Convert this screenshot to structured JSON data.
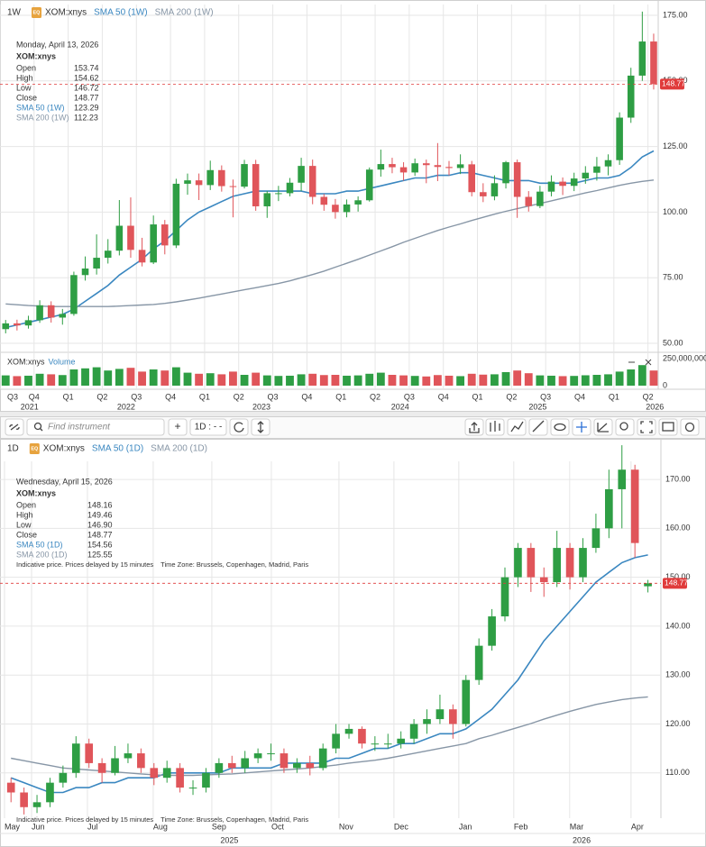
{
  "toolbar": {
    "search_placeholder": "Find instrument",
    "add_button": "+",
    "interval_button": "1D : - -"
  },
  "chart_data": [
    {
      "type": "candlestick",
      "interval": "1W",
      "badge": "EQ",
      "symbol": "XOM:xnys",
      "info": {
        "date": "Monday, April 13, 2026",
        "symbol": "XOM:xnys",
        "rows": [
          {
            "label": "Open",
            "value": "153.74"
          },
          {
            "label": "High",
            "value": "154.62"
          },
          {
            "label": "Low",
            "value": "146.72"
          },
          {
            "label": "Close",
            "value": "148.77"
          },
          {
            "label": "SMA 50 (1W)",
            "value": "123.29"
          },
          {
            "label": "SMA 200 (1W)",
            "value": "112.23"
          }
        ]
      },
      "up_color": "#2e9e44",
      "down_color": "#e0555a",
      "grid": true,
      "candles": {
        "open": [
          55.4,
          57.6,
          56.8,
          58.8,
          64.5,
          59.8,
          61.2,
          76,
          78.5,
          82.6,
          85.3,
          94.8,
          85.6,
          80.8,
          95.3,
          87.3,
          110.8,
          112.1,
          110.3,
          116,
          109.9,
          109.7,
          118.3,
          102.2,
          107.2,
          107.2,
          111.2,
          117.6,
          105.8,
          102.8,
          100,
          102.9,
          104.5,
          116.2,
          118.3,
          117.1,
          115.1,
          118.6,
          117.9,
          117.2,
          116.8,
          118.2,
          107.6,
          106,
          111,
          119,
          105.8,
          102.3,
          107.8,
          111.6,
          110,
          112.8,
          115,
          117.4,
          119.8,
          136,
          152,
          165
        ],
        "high": [
          58.9,
          59,
          60.5,
          66.4,
          66,
          63.1,
          77.3,
          83.1,
          91.5,
          89.7,
          104.6,
          105.6,
          90.2,
          98.7,
          97,
          112.7,
          114.7,
          114.7,
          119.6,
          117.8,
          112.4,
          119.9,
          119.9,
          108,
          110,
          113,
          120.7,
          120,
          106.9,
          105,
          104.8,
          106,
          117,
          123.8,
          120.7,
          119,
          120.4,
          120,
          126.3,
          119.5,
          122,
          119.5,
          111,
          114,
          119.5,
          120,
          108,
          110,
          114,
          113.2,
          115,
          117.5,
          121,
          122,
          138,
          155,
          176.4,
          168
        ],
        "low": [
          53.8,
          54.9,
          55.6,
          57.8,
          57.9,
          57.1,
          60.5,
          73.9,
          76.2,
          80.4,
          83.5,
          82.6,
          79.3,
          80.2,
          83.9,
          86.3,
          106.6,
          104.6,
          108.4,
          107.8,
          98,
          109,
          100.5,
          97.8,
          104.2,
          106,
          108,
          103,
          100.5,
          97.5,
          98,
          100.2,
          104,
          113.5,
          114.8,
          112,
          113.8,
          111,
          111.8,
          114,
          114.5,
          106,
          103.8,
          104.5,
          109,
          97.8,
          100.2,
          101.5,
          106,
          106.5,
          108,
          110.8,
          112,
          114,
          118,
          134,
          150,
          146.72
        ],
        "close": [
          57.6,
          56.8,
          58.8,
          64.5,
          59.8,
          61.2,
          76,
          78.5,
          82.6,
          85.3,
          94.8,
          85.6,
          80.8,
          95.3,
          87.3,
          110.8,
          112.1,
          110.3,
          116,
          109.9,
          109.7,
          118.3,
          102.2,
          107.2,
          107.2,
          111.2,
          117.6,
          105.8,
          102.8,
          100,
          102.9,
          104.5,
          116.2,
          118.3,
          117.1,
          115.1,
          118.6,
          117.9,
          117.2,
          116.8,
          118.2,
          107.6,
          106,
          111,
          119,
          105.8,
          102.3,
          107.8,
          111.6,
          110,
          112.8,
          115,
          117.4,
          119.8,
          136,
          152,
          165,
          148.77
        ]
      },
      "series": [
        {
          "name": "SMA 50 (1W)",
          "color": "#3a87c0",
          "values": [
            56,
            57,
            58,
            59,
            60,
            61,
            63,
            66,
            69,
            72,
            76,
            79,
            82,
            86,
            89,
            93,
            97,
            100,
            102,
            104,
            106,
            107,
            108,
            108,
            108,
            108,
            108,
            107,
            107,
            107,
            108,
            108,
            109,
            110,
            111,
            112,
            113,
            113,
            114,
            114,
            115,
            115,
            114,
            113,
            112,
            112,
            112,
            111,
            111,
            111,
            111,
            112,
            113,
            113,
            114,
            117,
            121,
            123.29
          ]
        },
        {
          "name": "SMA 200 (1W)",
          "color": "#8796a6",
          "values": [
            65,
            64.7,
            64.4,
            64.2,
            64,
            64,
            64,
            64,
            64,
            64,
            64.2,
            64.4,
            64.6,
            64.8,
            65.2,
            65.8,
            66.5,
            67.2,
            68,
            68.8,
            69.6,
            70.4,
            71.2,
            72,
            72.8,
            73.8,
            75,
            76.2,
            77.5,
            79,
            80.5,
            82,
            83.6,
            85.2,
            86.8,
            88.5,
            90,
            91.5,
            93,
            94.3,
            95.5,
            96.8,
            98,
            99.2,
            100.3,
            101.3,
            102.3,
            103.3,
            104.3,
            105.3,
            106.3,
            107.3,
            108.2,
            109.2,
            110.2,
            111,
            111.7,
            112.23
          ]
        }
      ],
      "last_price": 148.77,
      "last_price_color": "#e03b3b",
      "ylim": [
        47.6,
        179.1
      ],
      "yticks": [
        {
          "value": 175,
          "label": "175.00"
        },
        {
          "value": 150,
          "label": "150.00"
        },
        {
          "value": 125,
          "label": "125.00"
        },
        {
          "value": 100,
          "label": "100.00"
        },
        {
          "value": 75,
          "label": "75.00"
        },
        {
          "value": 50,
          "label": "50.00"
        }
      ],
      "xlim": [
        0.4,
        57.9
      ],
      "xticks": [
        {
          "value": 0,
          "label": "Q3"
        },
        {
          "value": 3,
          "label": "Q4"
        },
        {
          "value": 6,
          "label": "Q1"
        },
        {
          "value": 9,
          "label": "Q2"
        },
        {
          "value": 12,
          "label": "Q3"
        },
        {
          "value": 15,
          "label": "Q4"
        },
        {
          "value": 18,
          "label": "Q1"
        },
        {
          "value": 21,
          "label": "Q2"
        },
        {
          "value": 24,
          "label": "Q3"
        },
        {
          "value": 27,
          "label": "Q4"
        },
        {
          "value": 30,
          "label": "Q1"
        },
        {
          "value": 33,
          "label": "Q2"
        },
        {
          "value": 36,
          "label": "Q3"
        },
        {
          "value": 39,
          "label": "Q4"
        },
        {
          "value": 42,
          "label": "Q1"
        },
        {
          "value": 45,
          "label": "Q2"
        },
        {
          "value": 48,
          "label": "Q3"
        },
        {
          "value": 51,
          "label": "Q4"
        },
        {
          "value": 54,
          "label": "Q1"
        },
        {
          "value": 57,
          "label": "Q2"
        }
      ],
      "year_ticks": [
        {
          "value": 2.6,
          "label": "2021"
        },
        {
          "value": 11.1,
          "label": "2022"
        },
        {
          "value": 23,
          "label": "2023"
        },
        {
          "value": 35.2,
          "label": "2024"
        },
        {
          "value": 47.3,
          "label": "2025"
        },
        {
          "value": 57.6,
          "label": "2026"
        }
      ],
      "volume": {
        "name": "Volume",
        "ylim": [
          0,
          250000000
        ],
        "yticks": [
          {
            "value": 250000000,
            "label": "250,000,000"
          },
          0
        ],
        "values": [
          95000000,
          88000000,
          92000000,
          110000000,
          105000000,
          98000000,
          150000000,
          160000000,
          170000000,
          140000000,
          155000000,
          165000000,
          130000000,
          150000000,
          140000000,
          170000000,
          120000000,
          110000000,
          115000000,
          105000000,
          130000000,
          100000000,
          120000000,
          95000000,
          90000000,
          92000000,
          105000000,
          110000000,
          98000000,
          100000000,
          92000000,
          95000000,
          110000000,
          120000000,
          100000000,
          95000000,
          90000000,
          85000000,
          98000000,
          92000000,
          88000000,
          110000000,
          102000000,
          105000000,
          125000000,
          140000000,
          115000000,
          95000000,
          92000000,
          88000000,
          90000000,
          96000000,
          100000000,
          105000000,
          130000000,
          150000000,
          190000000,
          140000000
        ]
      }
    },
    {
      "type": "candlestick",
      "interval": "1D",
      "badge": "EQ",
      "symbol": "XOM:xnys",
      "info": {
        "date": "Wednesday, April 15, 2026",
        "symbol": "XOM:xnys",
        "rows": [
          {
            "label": "Open",
            "value": "148.16"
          },
          {
            "label": "High",
            "value": "149.46"
          },
          {
            "label": "Low",
            "value": "146.90"
          },
          {
            "label": "Close",
            "value": "148.77"
          },
          {
            "label": "SMA 50 (1D)",
            "value": "154.56"
          },
          {
            "label": "SMA 200 (1D)",
            "value": "125.55"
          }
        ]
      },
      "notice": "Indicative price. Prices delayed by 15 minutes",
      "timezone": "Time Zone: Brussels, Copenhagen, Madrid, Paris",
      "up_color": "#2e9e44",
      "down_color": "#e0555a",
      "grid": true,
      "candles": {
        "open": [
          108,
          106,
          103,
          104,
          108,
          110,
          116,
          112,
          110,
          113,
          114,
          111,
          109,
          111,
          107,
          107,
          110,
          112,
          111,
          113,
          114,
          114,
          111,
          112,
          111,
          115,
          118,
          119,
          116,
          116,
          116,
          117,
          120,
          121,
          123,
          120,
          129,
          136,
          142,
          150,
          156,
          150,
          149,
          156,
          150,
          156,
          160,
          168,
          172,
          148.16
        ],
        "high": [
          109,
          107,
          105.5,
          109,
          111.5,
          117.5,
          117,
          113,
          115.5,
          116,
          115,
          112,
          112.5,
          112,
          108.5,
          111,
          113,
          113.5,
          114.5,
          115,
          116,
          115,
          113,
          113.5,
          116,
          120,
          120,
          119.5,
          117.5,
          118,
          118.5,
          121,
          123,
          126,
          124,
          130,
          137.5,
          143.5,
          152,
          157,
          157,
          152,
          159.5,
          157,
          158,
          163,
          172,
          177,
          173,
          149.46
        ],
        "low": [
          104,
          101.5,
          101.8,
          103,
          107,
          109,
          111,
          108,
          109.5,
          112,
          110,
          107.5,
          108,
          106,
          105.5,
          106,
          109,
          110,
          110,
          112,
          112.5,
          110,
          110,
          109.5,
          110.5,
          114,
          117,
          115,
          114.5,
          115,
          115,
          116,
          118,
          120,
          117,
          119.5,
          128,
          135,
          141,
          148,
          147,
          146,
          148,
          147.5,
          149,
          155,
          158,
          160,
          154,
          146.9
        ],
        "close": [
          106,
          103,
          104,
          108,
          110,
          116,
          112,
          110,
          113,
          114,
          111,
          109,
          111,
          107,
          107,
          110,
          112,
          111,
          113,
          114,
          114,
          111,
          112,
          111,
          115,
          118,
          119,
          116,
          116,
          116,
          117,
          120,
          121,
          123,
          120,
          129,
          136,
          142,
          150,
          156,
          150,
          149,
          156,
          150,
          156,
          160,
          168,
          172,
          157,
          148.77
        ]
      },
      "series": [
        {
          "name": "SMA 50 (1D)",
          "color": "#3a87c0",
          "values": [
            109,
            108,
            107,
            106,
            106,
            107,
            107,
            108,
            108,
            109,
            109,
            109,
            110,
            110,
            110,
            110,
            110,
            111,
            111,
            111,
            111,
            112,
            112,
            112,
            112,
            113,
            113,
            114,
            115,
            115,
            116,
            116,
            117,
            118,
            118,
            119,
            121,
            123,
            126,
            129,
            133,
            137,
            140,
            143,
            146,
            149,
            151,
            153,
            154,
            154.56
          ]
        },
        {
          "name": "SMA 200 (1D)",
          "color": "#8796a6",
          "values": [
            113,
            112.5,
            112,
            111.5,
            111,
            110.8,
            110.6,
            110.4,
            110.2,
            110,
            109.8,
            109.6,
            109.5,
            109.5,
            109.5,
            109.6,
            109.7,
            109.8,
            110,
            110.2,
            110.4,
            110.6,
            110.8,
            111,
            111.3,
            111.6,
            112,
            112.3,
            112.6,
            113,
            113.5,
            114,
            114.5,
            115,
            115.5,
            116,
            117,
            117.7,
            118.5,
            119.3,
            120.1,
            121,
            121.8,
            122.6,
            123.3,
            124,
            124.5,
            125,
            125.3,
            125.55
          ]
        }
      ],
      "last_price": 148.77,
      "last_price_color": "#e03b3b",
      "ylim": [
        101.3,
        173.7
      ],
      "yticks": [
        {
          "value": 170,
          "label": "170.00"
        },
        {
          "value": 160,
          "label": "160.00"
        },
        {
          "value": 150,
          "label": "150.00"
        },
        {
          "value": 140,
          "label": "140.00"
        },
        {
          "value": 130,
          "label": "130.00"
        },
        {
          "value": 120,
          "label": "120.00"
        },
        {
          "value": 110,
          "label": "110.00"
        }
      ],
      "xlim": [
        0,
        50.5
      ],
      "xticks": [
        {
          "value": 0,
          "label": "May"
        },
        {
          "value": 2.08,
          "label": "Jun"
        },
        {
          "value": 6.38,
          "label": "Jul"
        },
        {
          "value": 11.44,
          "label": "Aug"
        },
        {
          "value": 15.95,
          "label": "Sep"
        },
        {
          "value": 20.53,
          "label": "Oct"
        },
        {
          "value": 25.73,
          "label": "Nov"
        },
        {
          "value": 29.96,
          "label": "Dec"
        },
        {
          "value": 34.95,
          "label": "Jan"
        },
        {
          "value": 39.18,
          "label": "Feb"
        },
        {
          "value": 43.48,
          "label": "Mar"
        },
        {
          "value": 48.2,
          "label": "Apr"
        }
      ],
      "year_ticks": [
        {
          "value": 17.3,
          "label": "2025"
        },
        {
          "value": 44.4,
          "label": "2026"
        }
      ]
    }
  ]
}
